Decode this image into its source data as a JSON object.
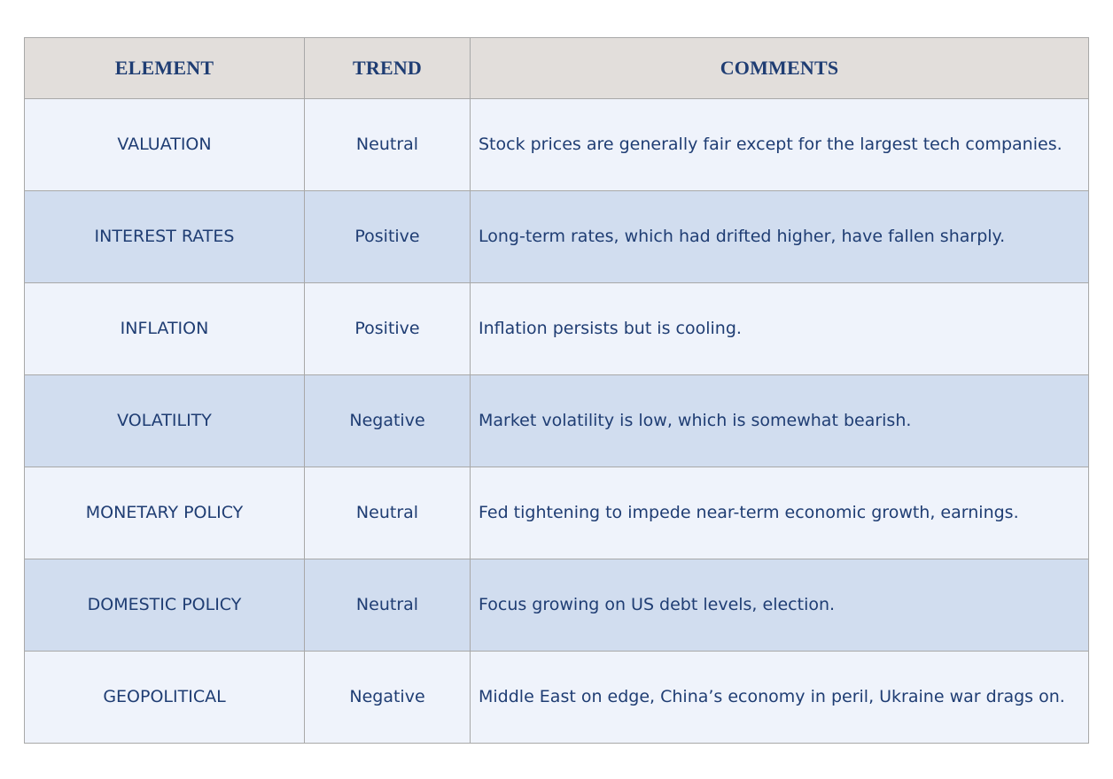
{
  "table": {
    "headers": [
      "ELEMENT",
      "TREND",
      "COMMENTS"
    ],
    "rows": [
      {
        "element": "VALUATION",
        "trend": "Neutral",
        "comment": "Stock prices are generally fair except for the largest tech companies."
      },
      {
        "element": "INTEREST RATES",
        "trend": "Positive",
        "comment": "Long-term rates, which had drifted higher, have fallen sharply."
      },
      {
        "element": "INFLATION",
        "trend": "Positive",
        "comment": "Inflation persists but is cooling."
      },
      {
        "element": "VOLATILITY",
        "trend": "Negative",
        "comment": "Market volatility is low, which is somewhat bearish."
      },
      {
        "element": "MONETARY POLICY",
        "trend": "Neutral",
        "comment": "Fed tightening to impede near-term economic growth, earnings."
      },
      {
        "element": "DOMESTIC POLICY",
        "trend": "Neutral",
        "comment": "Focus growing on US debt levels, election."
      },
      {
        "element": "GEOPOLITICAL",
        "trend": "Negative",
        "comment": "Middle East on edge, China’s economy in peril, Ukraine war drags on."
      }
    ]
  },
  "colors": {
    "text": "#1f3d73",
    "header_bg": "#e2dedb",
    "row_light": "#eff3fb",
    "row_dark": "#d1ddef",
    "border": "#a8a8a8"
  }
}
